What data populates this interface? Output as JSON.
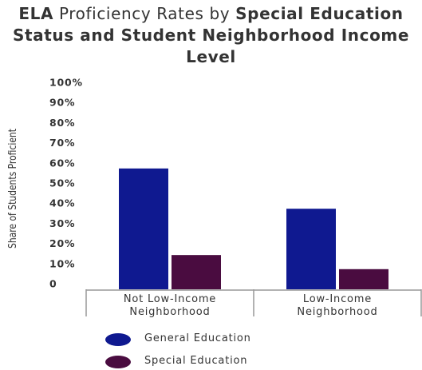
{
  "chart_data": {
    "type": "bar",
    "title": [
      {
        "text": "ELA",
        "bold": true
      },
      {
        "text": " Proficiency Rates by ",
        "bold": false
      },
      {
        "text": "Special Education Status and Student Neighborhood Income Level",
        "bold": true
      }
    ],
    "y_axis_label": "Share of Students Proficient",
    "categories": [
      "Not Low-Income\nNeighborhood",
      "Low-Income\nNeighborhood"
    ],
    "series": [
      {
        "name": "General Education",
        "color": "#0f1990",
        "values": [
          60,
          40
        ]
      },
      {
        "name": "Special Education",
        "color": "#4a0c40",
        "values": [
          17,
          10
        ]
      }
    ],
    "ylim": [
      0,
      100
    ],
    "yticks": [
      0,
      {
        "value": 10,
        "label": "10%"
      },
      {
        "value": 20,
        "label": "20%"
      },
      {
        "value": 30,
        "label": "30%"
      },
      {
        "value": 40,
        "label": "40%"
      },
      {
        "value": 50,
        "label": "50%"
      },
      {
        "value": 60,
        "label": "60%"
      },
      {
        "value": 70,
        "label": "70%"
      },
      {
        "value": 80,
        "label": "80%"
      },
      {
        "value": 90,
        "label": "90%"
      },
      {
        "value": 100,
        "label": "100%"
      }
    ],
    "grid": false
  }
}
